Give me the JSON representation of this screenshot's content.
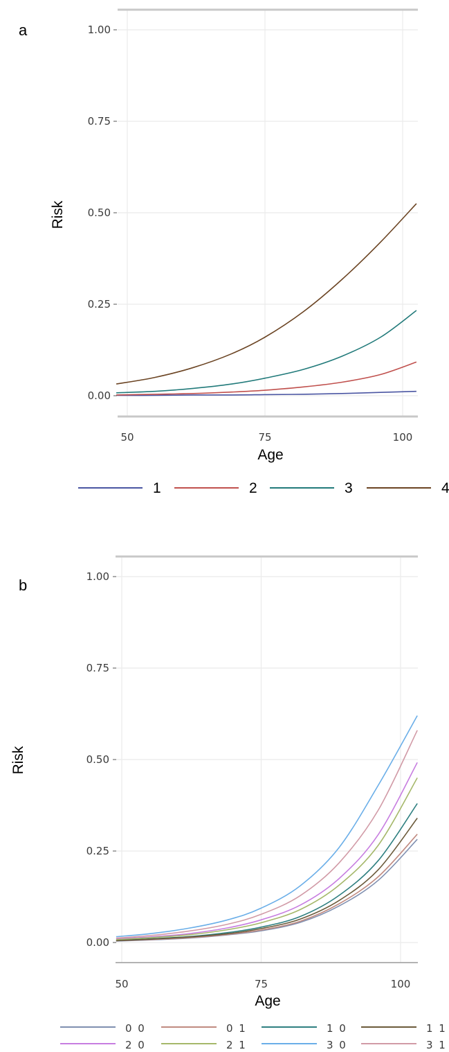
{
  "chart_data": [
    {
      "panel": "a",
      "type": "line",
      "xlabel": "Age",
      "ylabel": "Risk",
      "xlim": [
        48,
        102.5
      ],
      "ylim": [
        -0.06,
        1.06
      ],
      "xticks": [
        50,
        75,
        100
      ],
      "xtick_labels": [
        "50",
        "75",
        "100"
      ],
      "yticks": [
        0,
        0.25,
        0.5,
        0.75,
        1.0
      ],
      "ytick_labels": [
        "0.00",
        "0.25",
        "0.50",
        "0.75",
        "1.00"
      ],
      "grid": true,
      "legend_position": "bottom",
      "x": [
        48,
        55,
        62,
        69,
        75,
        82,
        89,
        96,
        102.5
      ],
      "series": [
        {
          "name": "1",
          "color": "#4a55a2",
          "values": [
            0.001,
            0.001,
            0.002,
            0.002,
            0.003,
            0.004,
            0.006,
            0.009,
            0.012
          ]
        },
        {
          "name": "2",
          "color": "#c0504d",
          "values": [
            0.002,
            0.004,
            0.006,
            0.01,
            0.015,
            0.024,
            0.037,
            0.058,
            0.092
          ]
        },
        {
          "name": "3",
          "color": "#217a7a",
          "values": [
            0.008,
            0.012,
            0.02,
            0.032,
            0.048,
            0.072,
            0.108,
            0.16,
            0.233
          ]
        },
        {
          "name": "4",
          "color": "#6b4423",
          "values": [
            0.032,
            0.05,
            0.077,
            0.115,
            0.16,
            0.23,
            0.318,
            0.42,
            0.525
          ]
        }
      ]
    },
    {
      "panel": "b",
      "type": "line",
      "xlabel": "Age",
      "ylabel": "Risk",
      "xlim": [
        49,
        103
      ],
      "ylim": [
        -0.06,
        1.06
      ],
      "xticks": [
        50,
        75,
        100
      ],
      "xtick_labels": [
        "50",
        "75",
        "100"
      ],
      "yticks": [
        0,
        0.25,
        0.5,
        0.75,
        1.0
      ],
      "ytick_labels": [
        "0.00",
        "0.25",
        "0.50",
        "0.75",
        "1.00"
      ],
      "grid": true,
      "legend_position": "bottom",
      "x": [
        49,
        55,
        62,
        69,
        75,
        82,
        89,
        96,
        103
      ],
      "series": [
        {
          "name": "0 0",
          "color": "#7f8fb0",
          "values": [
            0.004,
            0.007,
            0.012,
            0.021,
            0.032,
            0.055,
            0.1,
            0.17,
            0.282
          ]
        },
        {
          "name": "0 1",
          "color": "#c08a80",
          "values": [
            0.005,
            0.008,
            0.013,
            0.022,
            0.034,
            0.058,
            0.106,
            0.18,
            0.296
          ]
        },
        {
          "name": "1 0",
          "color": "#2e7f80",
          "values": [
            0.006,
            0.01,
            0.016,
            0.027,
            0.042,
            0.071,
            0.129,
            0.224,
            0.38
          ]
        },
        {
          "name": "1 1",
          "color": "#6b5a3a",
          "values": [
            0.005,
            0.009,
            0.015,
            0.024,
            0.038,
            0.064,
            0.115,
            0.199,
            0.34
          ]
        },
        {
          "name": "2 0",
          "color": "#c77de0",
          "values": [
            0.01,
            0.015,
            0.024,
            0.04,
            0.062,
            0.102,
            0.175,
            0.295,
            0.492
          ]
        },
        {
          "name": "2 1",
          "color": "#a5b86a",
          "values": [
            0.008,
            0.013,
            0.021,
            0.035,
            0.054,
            0.09,
            0.157,
            0.266,
            0.45
          ]
        },
        {
          "name": "3 0",
          "color": "#6aaee8",
          "values": [
            0.016,
            0.024,
            0.039,
            0.062,
            0.094,
            0.155,
            0.26,
            0.43,
            0.62
          ]
        },
        {
          "name": "3 1",
          "color": "#d19aa6",
          "values": [
            0.012,
            0.019,
            0.031,
            0.05,
            0.077,
            0.128,
            0.218,
            0.362,
            0.58
          ]
        }
      ]
    }
  ]
}
